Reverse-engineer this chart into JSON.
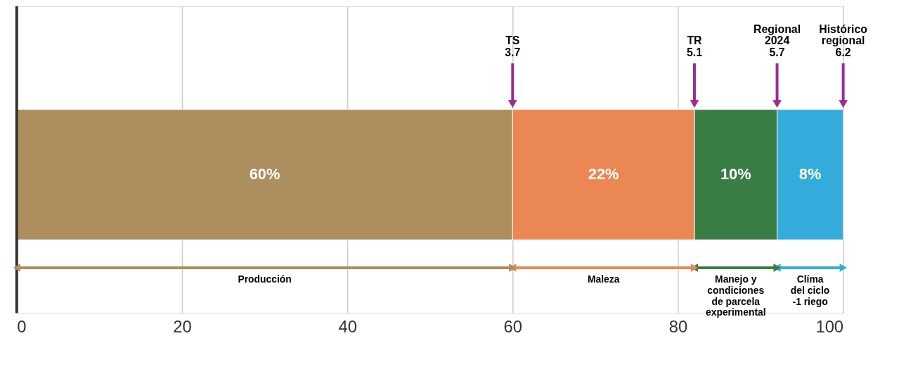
{
  "chart_data": {
    "type": "bar",
    "orientation": "horizontal",
    "stacked": true,
    "categories": [
      null
    ],
    "series": [
      {
        "color": "#ad8e5f",
        "values": [
          60
        ],
        "value_labels": [
          "60%"
        ]
      },
      {
        "color": "#eb8753",
        "values": [
          22
        ],
        "value_labels": [
          "22%"
        ]
      },
      {
        "color": "#3a7d44",
        "values": [
          10
        ],
        "value_labels": [
          "10%"
        ]
      },
      {
        "color": "#33abdb",
        "values": [
          8
        ],
        "value_labels": [
          "8%"
        ]
      }
    ],
    "xlim": [
      0,
      100
    ],
    "xticks": [
      0,
      20,
      40,
      60,
      80,
      100
    ],
    "grid": "x",
    "ref_lines": [
      {
        "axis": "x",
        "value": 60,
        "label": "TS\n3.7",
        "color": "#9b2b94"
      },
      {
        "axis": "x",
        "value": 82,
        "label": "TR\n5.1",
        "color": "#9b2b94"
      },
      {
        "axis": "x",
        "value": 92,
        "label": "Regional\n2024\n5.7",
        "color": "#9b2b94"
      },
      {
        "axis": "x",
        "value": 100,
        "label": "Histórico\nregional\n6.2",
        "color": "#9b2b94"
      }
    ],
    "annotations": [
      "Producción",
      "Maleza",
      "Manejo y\ncondiciones\nde parcela\nexperimental",
      "Clíma\ndel ciclo\n-1 riego"
    ]
  }
}
